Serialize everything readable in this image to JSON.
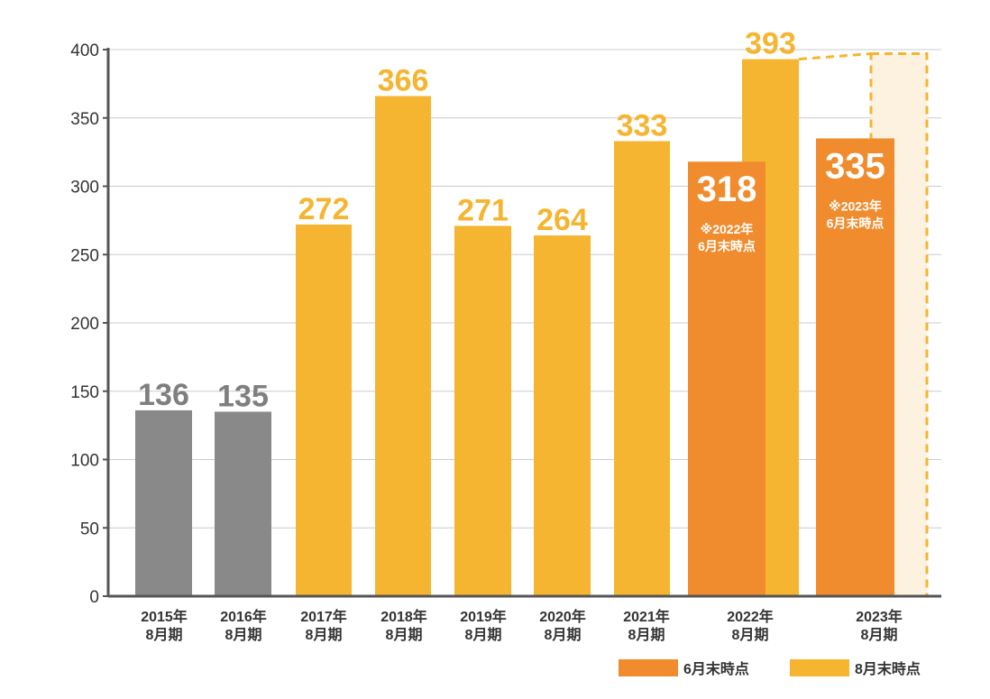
{
  "chart_data": {
    "type": "bar",
    "title": "",
    "xlabel": "",
    "ylabel": "",
    "ylim": [
      0,
      400
    ],
    "yticks": [
      0,
      50,
      100,
      150,
      200,
      250,
      300,
      350,
      400
    ],
    "grid": true,
    "colors": {
      "gray": "#898989",
      "august": "#F5B530",
      "june": "#F08C2E",
      "projection_fill": "#FDF1E0",
      "projection_stroke": "#F5B530",
      "axis": "#555555",
      "gridline": "#cccccc",
      "gray_label": "#7f7f7f"
    },
    "categories": [
      {
        "line1": "2015年",
        "line2": "8月期"
      },
      {
        "line1": "2016年",
        "line2": "8月期"
      },
      {
        "line1": "2017年",
        "line2": "8月期"
      },
      {
        "line1": "2018年",
        "line2": "8月期"
      },
      {
        "line1": "2019年",
        "line2": "8月期"
      },
      {
        "line1": "2020年",
        "line2": "8月期"
      },
      {
        "line1": "2021年",
        "line2": "8月期"
      },
      {
        "line1": "2022年",
        "line2": "8月期"
      },
      {
        "line1": "2023年",
        "line2": "8月期"
      }
    ],
    "series": [
      {
        "name": "8月末時点",
        "values": [
          136,
          135,
          272,
          366,
          271,
          264,
          333,
          393,
          null
        ],
        "labels": [
          "136",
          "135",
          "272",
          "366",
          "271",
          "264",
          "333",
          "393",
          ""
        ]
      },
      {
        "name": "6月末時点",
        "values": [
          null,
          null,
          null,
          null,
          null,
          null,
          null,
          318,
          335
        ],
        "labels": [
          "",
          "",
          "",
          "",
          "",
          "",
          "",
          "318",
          "335"
        ],
        "notes": [
          "",
          "",
          "",
          "",
          "",
          "",
          "",
          "※2022年|6月末時点",
          "※2023年|6月末時点"
        ]
      }
    ],
    "projection": {
      "category_index": 8,
      "value": 397
    },
    "legend": [
      {
        "label": "6月末時点",
        "color": "#F08C2E"
      },
      {
        "label": "8月末時点",
        "color": "#F5B530"
      }
    ],
    "legend_position": "bottom-right"
  }
}
